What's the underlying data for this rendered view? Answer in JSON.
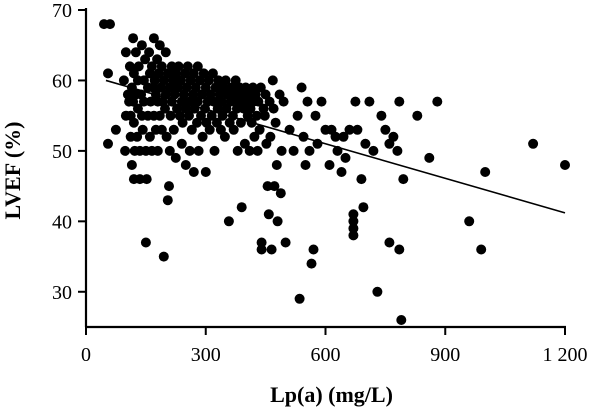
{
  "chart_data": {
    "type": "scatter",
    "title": "",
    "xlabel": "Lp(a) (mg/L)",
    "ylabel": "LVEF (%)",
    "xlim": [
      0,
      1200
    ],
    "ylim": [
      25,
      70
    ],
    "xticks": [
      0,
      300,
      600,
      900,
      1200
    ],
    "xtick_labels": [
      "0",
      "300",
      "600",
      "900",
      "1 200"
    ],
    "yticks": [
      30,
      40,
      50,
      60,
      70
    ],
    "ytick_labels": [
      "30",
      "40",
      "50",
      "60",
      "70"
    ],
    "grid": false,
    "point_color": "#000000",
    "trendline": {
      "x": [
        50,
        1200
      ],
      "y": [
        60,
        41.2
      ]
    },
    "points": [
      [
        45,
        68
      ],
      [
        60,
        68
      ],
      [
        55,
        61
      ],
      [
        55,
        51
      ],
      [
        75,
        53
      ],
      [
        95,
        60
      ],
      [
        98,
        50
      ],
      [
        100,
        55
      ],
      [
        100,
        64
      ],
      [
        105,
        58
      ],
      [
        108,
        57
      ],
      [
        110,
        62
      ],
      [
        112,
        55
      ],
      [
        112,
        52
      ],
      [
        115,
        59
      ],
      [
        115,
        48
      ],
      [
        118,
        66
      ],
      [
        118,
        57
      ],
      [
        120,
        61
      ],
      [
        120,
        54
      ],
      [
        120,
        46
      ],
      [
        122,
        50
      ],
      [
        125,
        64
      ],
      [
        125,
        58
      ],
      [
        128,
        52
      ],
      [
        130,
        60
      ],
      [
        130,
        56
      ],
      [
        132,
        62
      ],
      [
        135,
        50
      ],
      [
        135,
        46
      ],
      [
        138,
        58
      ],
      [
        140,
        65
      ],
      [
        140,
        55
      ],
      [
        142,
        53
      ],
      [
        145,
        60
      ],
      [
        145,
        57
      ],
      [
        148,
        63
      ],
      [
        150,
        50
      ],
      [
        150,
        37
      ],
      [
        152,
        46
      ],
      [
        155,
        59
      ],
      [
        155,
        55
      ],
      [
        158,
        64
      ],
      [
        160,
        61
      ],
      [
        160,
        52
      ],
      [
        162,
        57
      ],
      [
        165,
        62
      ],
      [
        165,
        50
      ],
      [
        168,
        59
      ],
      [
        170,
        66
      ],
      [
        170,
        55
      ],
      [
        172,
        60
      ],
      [
        175,
        58
      ],
      [
        175,
        53
      ],
      [
        178,
        63
      ],
      [
        180,
        57
      ],
      [
        180,
        50
      ],
      [
        182,
        61
      ],
      [
        185,
        55
      ],
      [
        185,
        65
      ],
      [
        188,
        59
      ],
      [
        190,
        62
      ],
      [
        190,
        53
      ],
      [
        192,
        57
      ],
      [
        195,
        60
      ],
      [
        195,
        35
      ],
      [
        198,
        56
      ],
      [
        200,
        64
      ],
      [
        200,
        58
      ],
      [
        202,
        52
      ],
      [
        205,
        61
      ],
      [
        205,
        43
      ],
      [
        208,
        45
      ],
      [
        210,
        59
      ],
      [
        210,
        50
      ],
      [
        212,
        55
      ],
      [
        215,
        62
      ],
      [
        215,
        57
      ],
      [
        218,
        60
      ],
      [
        220,
        53
      ],
      [
        222,
        58
      ],
      [
        225,
        61
      ],
      [
        225,
        49
      ],
      [
        228,
        56
      ],
      [
        230,
        59
      ],
      [
        232,
        62
      ],
      [
        235,
        55
      ],
      [
        238,
        60
      ],
      [
        240,
        57
      ],
      [
        240,
        51
      ],
      [
        242,
        54
      ],
      [
        245,
        58
      ],
      [
        248,
        61
      ],
      [
        250,
        56
      ],
      [
        250,
        48
      ],
      [
        252,
        59
      ],
      [
        255,
        62
      ],
      [
        258,
        55
      ],
      [
        260,
        57
      ],
      [
        260,
        50
      ],
      [
        262,
        60
      ],
      [
        265,
        53
      ],
      [
        268,
        58
      ],
      [
        270,
        61
      ],
      [
        270,
        47
      ],
      [
        272,
        56
      ],
      [
        275,
        59
      ],
      [
        278,
        54
      ],
      [
        280,
        62
      ],
      [
        280,
        57
      ],
      [
        282,
        50
      ],
      [
        285,
        60
      ],
      [
        288,
        55
      ],
      [
        290,
        58
      ],
      [
        292,
        52
      ],
      [
        295,
        61
      ],
      [
        298,
        56
      ],
      [
        300,
        59
      ],
      [
        300,
        47
      ],
      [
        302,
        54
      ],
      [
        305,
        57
      ],
      [
        308,
        60
      ],
      [
        310,
        53
      ],
      [
        312,
        58
      ],
      [
        315,
        55
      ],
      [
        318,
        61
      ],
      [
        320,
        57
      ],
      [
        322,
        50
      ],
      [
        325,
        59
      ],
      [
        328,
        54
      ],
      [
        330,
        56
      ],
      [
        332,
        60
      ],
      [
        335,
        58
      ],
      [
        338,
        53
      ],
      [
        340,
        57
      ],
      [
        342,
        55
      ],
      [
        345,
        59
      ],
      [
        348,
        52
      ],
      [
        350,
        60
      ],
      [
        352,
        56
      ],
      [
        355,
        58
      ],
      [
        358,
        40
      ],
      [
        360,
        54
      ],
      [
        362,
        57
      ],
      [
        365,
        59
      ],
      [
        368,
        55
      ],
      [
        370,
        53
      ],
      [
        372,
        58
      ],
      [
        375,
        60
      ],
      [
        378,
        56
      ],
      [
        380,
        50
      ],
      [
        382,
        57
      ],
      [
        385,
        59
      ],
      [
        388,
        54
      ],
      [
        390,
        42
      ],
      [
        392,
        58
      ],
      [
        395,
        56
      ],
      [
        398,
        51
      ],
      [
        400,
        59
      ],
      [
        402,
        57
      ],
      [
        405,
        55
      ],
      [
        408,
        58
      ],
      [
        410,
        50
      ],
      [
        412,
        56
      ],
      [
        415,
        54
      ],
      [
        418,
        59
      ],
      [
        420,
        57
      ],
      [
        422,
        52
      ],
      [
        425,
        58
      ],
      [
        428,
        55
      ],
      [
        430,
        50
      ],
      [
        432,
        57
      ],
      [
        435,
        53
      ],
      [
        438,
        59
      ],
      [
        440,
        37
      ],
      [
        440,
        36
      ],
      [
        445,
        56
      ],
      [
        448,
        55
      ],
      [
        450,
        58
      ],
      [
        452,
        51
      ],
      [
        455,
        45
      ],
      [
        458,
        41
      ],
      [
        460,
        57
      ],
      [
        462,
        52
      ],
      [
        465,
        36
      ],
      [
        468,
        60
      ],
      [
        470,
        56
      ],
      [
        472,
        45
      ],
      [
        475,
        54
      ],
      [
        478,
        48
      ],
      [
        480,
        40
      ],
      [
        485,
        58
      ],
      [
        488,
        44
      ],
      [
        490,
        50
      ],
      [
        495,
        57
      ],
      [
        500,
        37
      ],
      [
        510,
        53
      ],
      [
        520,
        50
      ],
      [
        530,
        55
      ],
      [
        535,
        29
      ],
      [
        540,
        59
      ],
      [
        545,
        52
      ],
      [
        550,
        48
      ],
      [
        555,
        57
      ],
      [
        560,
        50
      ],
      [
        565,
        34
      ],
      [
        570,
        36
      ],
      [
        575,
        55
      ],
      [
        580,
        51
      ],
      [
        590,
        57
      ],
      [
        600,
        53
      ],
      [
        610,
        48
      ],
      [
        615,
        53
      ],
      [
        625,
        52
      ],
      [
        630,
        50
      ],
      [
        640,
        47
      ],
      [
        645,
        52
      ],
      [
        650,
        49
      ],
      [
        660,
        53
      ],
      [
        670,
        41
      ],
      [
        670,
        39
      ],
      [
        670,
        40
      ],
      [
        670,
        38
      ],
      [
        675,
        57
      ],
      [
        680,
        53
      ],
      [
        690,
        46
      ],
      [
        695,
        42
      ],
      [
        700,
        51
      ],
      [
        710,
        57
      ],
      [
        720,
        50
      ],
      [
        730,
        30
      ],
      [
        740,
        55
      ],
      [
        750,
        53
      ],
      [
        760,
        37
      ],
      [
        760,
        51
      ],
      [
        770,
        52
      ],
      [
        780,
        50
      ],
      [
        785,
        57
      ],
      [
        785,
        36
      ],
      [
        790,
        26
      ],
      [
        795,
        46
      ],
      [
        830,
        55
      ],
      [
        860,
        49
      ],
      [
        880,
        57
      ],
      [
        960,
        40
      ],
      [
        990,
        36
      ],
      [
        1000,
        47
      ],
      [
        1120,
        51
      ],
      [
        1200,
        48
      ]
    ]
  }
}
